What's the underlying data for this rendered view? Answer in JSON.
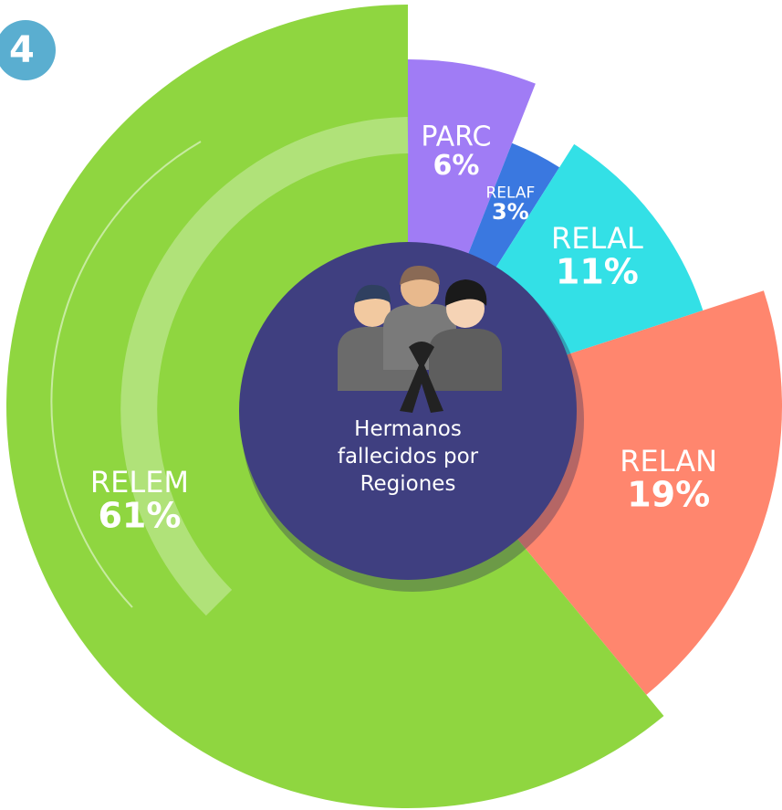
{
  "badge": "4",
  "chart_data": {
    "type": "pie",
    "title": "Hermanos fallecidos por Regiones",
    "categories": [
      "PARC",
      "RELAF",
      "RELAL",
      "RELAN",
      "RELEM"
    ],
    "values": [
      6,
      3,
      11,
      19,
      61
    ],
    "value_labels": [
      "6%",
      "3%",
      "11%",
      "19%",
      "61%"
    ],
    "colors": [
      "#a07cf5",
      "#3a78e0",
      "#33e0e6",
      "#ff866e",
      "#8fd640"
    ]
  }
}
